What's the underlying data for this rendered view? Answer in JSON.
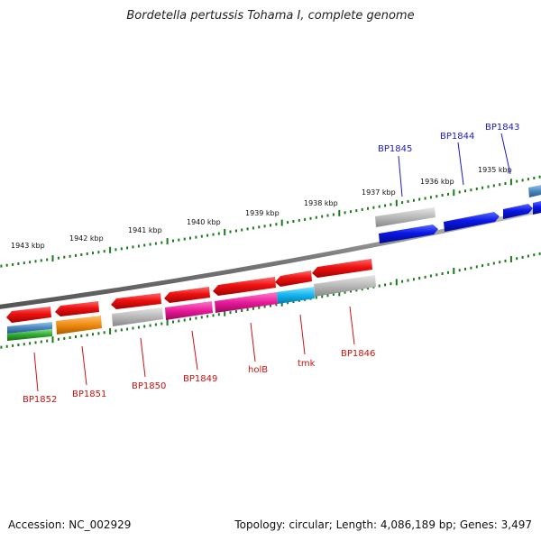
{
  "header": {
    "title": "Bordetella pertussis Tohama I, complete genome"
  },
  "footer": {
    "accession": "Accession: NC_002929",
    "summary": "Topology: circular; Length: 4,086,189 bp; Genes: 3,497"
  },
  "scale": {
    "tick_color": "#1a7a1a",
    "labels": [
      "1943 kbp",
      "1942 kbp",
      "1941 kbp",
      "1940 kbp",
      "1939 kbp",
      "1938 kbp",
      "1937 kbp",
      "1936 kbp",
      "1935 kbp"
    ]
  },
  "genes": {
    "forward": [
      {
        "name": "BP1845",
        "color": "#0a17e6",
        "label_color": "#1a1acc"
      },
      {
        "name": "BP1844",
        "color": "#0a17e6",
        "label_color": "#1a1acc"
      },
      {
        "name": "BP1843",
        "color": "#0a17e6",
        "label_color": "#1a1acc"
      }
    ],
    "reverse": [
      {
        "name": "BP1852",
        "color": "#ee1111",
        "label_color": "#cc1111"
      },
      {
        "name": "BP1851",
        "color": "#ee1111",
        "label_color": "#cc1111"
      },
      {
        "name": "BP1850",
        "color": "#ee1111",
        "label_color": "#cc1111"
      },
      {
        "name": "BP1849",
        "color": "#ee1111",
        "label_color": "#cc1111"
      },
      {
        "name": "holB",
        "color": "#ee1111",
        "label_color": "#cc1111"
      },
      {
        "name": "tmk",
        "color": "#ee1111",
        "label_color": "#cc1111"
      },
      {
        "name": "BP1846",
        "color": "#ee1111",
        "label_color": "#cc1111"
      }
    ]
  },
  "colors": {
    "backbone": "#7a7a7a",
    "gray": "#b8b8b8",
    "magenta": "#e8199a",
    "cyan": "#10b4f0",
    "orange": "#f08a10",
    "steel_blue": "#4a86c0",
    "green": "#2eaa2e"
  }
}
